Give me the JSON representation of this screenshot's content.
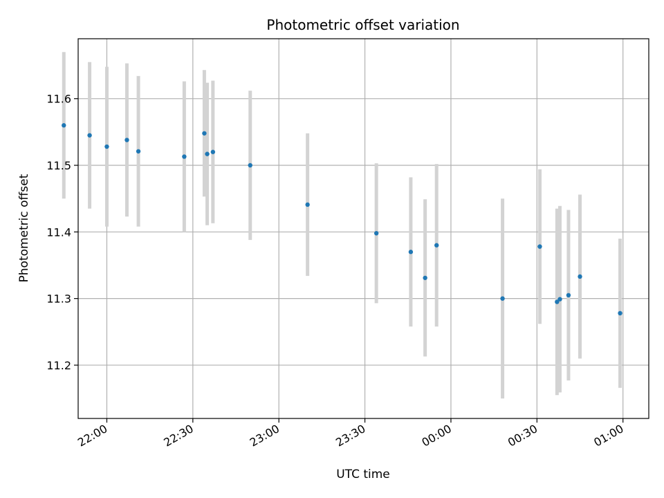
{
  "chart_data": {
    "type": "scatter",
    "title": "Photometric offset variation",
    "xlabel": "UTC time",
    "ylabel": "Photometric offset",
    "x_ticks": [
      "22:00",
      "22:30",
      "23:00",
      "23:30",
      "00:00",
      "00:30",
      "01:00"
    ],
    "y_ticks": [
      "11.2",
      "11.3",
      "11.4",
      "11.5",
      "11.6"
    ],
    "xlim": [
      "21:50",
      "01:09"
    ],
    "ylim": [
      11.12,
      11.69
    ],
    "grid": true,
    "colors": {
      "point": "#1f77b4",
      "errorbar": "#d3d3d3",
      "grid": "#b0b0b0"
    },
    "points": [
      {
        "t": "21:45",
        "y": 11.56,
        "err": 0.11
      },
      {
        "t": "21:54",
        "y": 11.545,
        "err": 0.11
      },
      {
        "t": "22:00",
        "y": 11.528,
        "err": 0.12
      },
      {
        "t": "22:07",
        "y": 11.538,
        "err": 0.115
      },
      {
        "t": "22:11",
        "y": 11.521,
        "err": 0.113
      },
      {
        "t": "22:27",
        "y": 11.513,
        "err": 0.113
      },
      {
        "t": "22:34",
        "y": 11.548,
        "err": 0.095
      },
      {
        "t": "22:35",
        "y": 11.517,
        "err": 0.107
      },
      {
        "t": "22:37",
        "y": 11.52,
        "err": 0.107
      },
      {
        "t": "22:50",
        "y": 11.5,
        "err": 0.112
      },
      {
        "t": "23:10",
        "y": 11.441,
        "err": 0.107
      },
      {
        "t": "23:34",
        "y": 11.398,
        "err": 0.105
      },
      {
        "t": "23:46",
        "y": 11.37,
        "err": 0.112
      },
      {
        "t": "23:51",
        "y": 11.331,
        "err": 0.118
      },
      {
        "t": "23:55",
        "y": 11.38,
        "err": 0.122
      },
      {
        "t": "00:18",
        "y": 11.3,
        "err": 0.15
      },
      {
        "t": "00:31",
        "y": 11.378,
        "err": 0.116
      },
      {
        "t": "00:37",
        "y": 11.295,
        "err": 0.14
      },
      {
        "t": "00:38",
        "y": 11.299,
        "err": 0.14
      },
      {
        "t": "00:41",
        "y": 11.305,
        "err": 0.128
      },
      {
        "t": "00:45",
        "y": 11.333,
        "err": 0.123
      },
      {
        "t": "00:59",
        "y": 11.278,
        "err": 0.112
      }
    ]
  }
}
